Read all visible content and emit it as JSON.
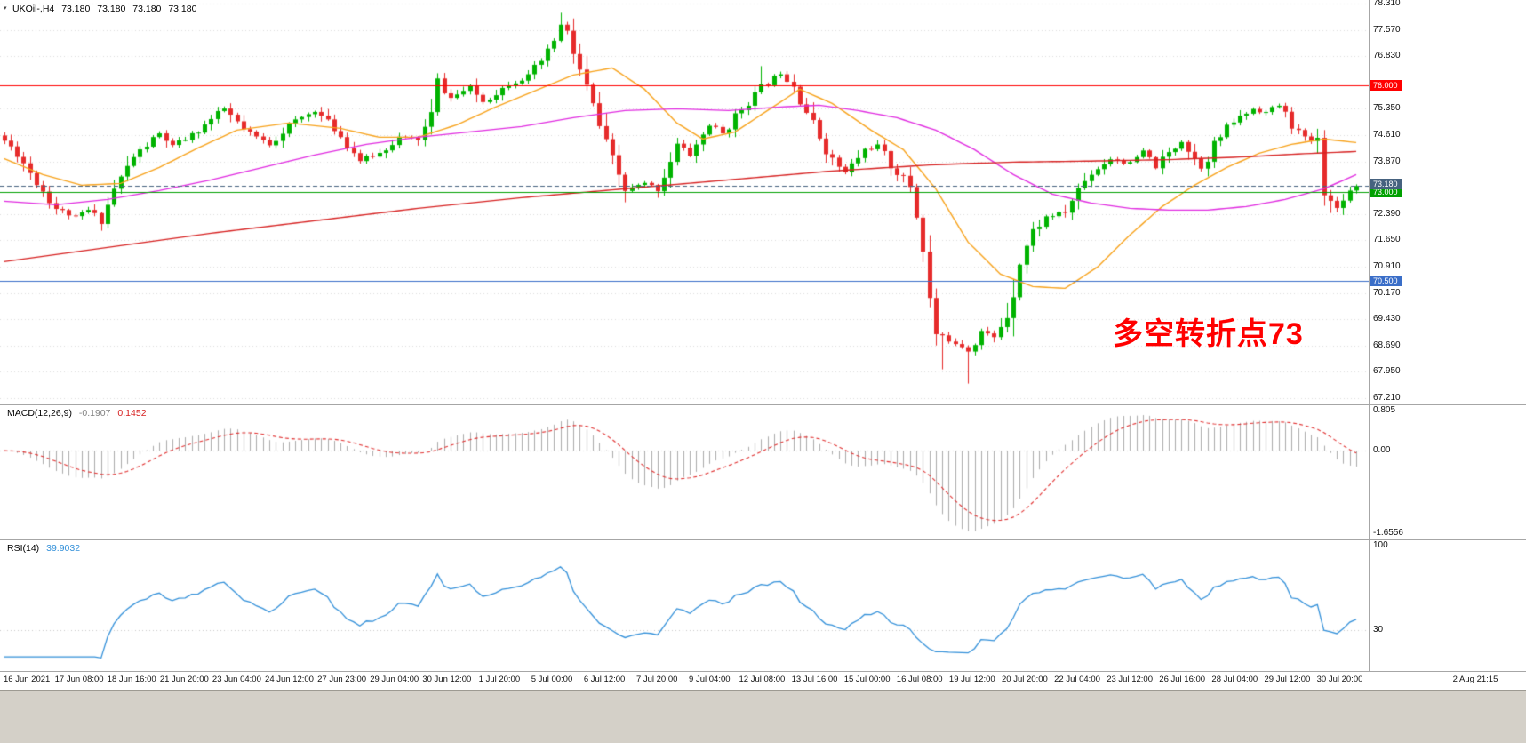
{
  "header": {
    "title_symbol": "UKOil-,H4",
    "ohlc": [
      "73.180",
      "73.180",
      "73.180",
      "73.180"
    ]
  },
  "annotation": {
    "text": "多空转折点73",
    "color": "#ff0000"
  },
  "colors": {
    "background": "#ffffff",
    "grid": "#dcdcdc",
    "bull": "#00b300",
    "bear": "#e62b2b",
    "ma_fast_orange": "#f7a21b",
    "ma_mid_magenta": "#e02be0",
    "ma_slow_red": "#d62020",
    "macd_histogram": "#ababab",
    "macd_signal": "#e03030",
    "rsi_line": "#3390d9",
    "hline_red": "#ff0000",
    "hline_green": "#00a000",
    "hline_blue": "#3a6ec8",
    "price_badge": "#46627f",
    "axis_text": "#111111",
    "window_chrome": "#d4d0c8"
  },
  "main_panel": {
    "price_ticks": [
      {
        "p": 78.31,
        "label": "78.310"
      },
      {
        "p": 77.57,
        "label": "77.570"
      },
      {
        "p": 76.83,
        "label": "76.830"
      },
      {
        "p": 75.35,
        "label": "75.350"
      },
      {
        "p": 74.61,
        "label": "74.610"
      },
      {
        "p": 73.87,
        "label": "73.870"
      },
      {
        "p": 72.39,
        "label": "72.390"
      },
      {
        "p": 71.65,
        "label": "71.650"
      },
      {
        "p": 70.91,
        "label": "70.910"
      },
      {
        "p": 70.17,
        "label": "70.170"
      },
      {
        "p": 69.43,
        "label": "69.430"
      },
      {
        "p": 68.69,
        "label": "68.690"
      },
      {
        "p": 67.95,
        "label": "67.950"
      },
      {
        "p": 67.21,
        "label": "67.210"
      }
    ],
    "hlines": [
      {
        "price": 76.0,
        "label": "76.000",
        "color": "#ff0000"
      },
      {
        "price": 73.0,
        "label": "73.000",
        "color": "#00a000"
      },
      {
        "price": 70.5,
        "label": "70.500",
        "color": "#3a6ec8"
      }
    ],
    "price_badge": {
      "price": 73.18,
      "label": "73.180",
      "color": "#46627f"
    }
  },
  "macd_panel": {
    "label": "MACD(12,26,9)",
    "value_main": "-0.1907",
    "value_signal": "0.1452",
    "ticks": [
      {
        "v": 0.805,
        "label": "0.805"
      },
      {
        "v": 0,
        "label": "0.00"
      },
      {
        "v": -1.6556,
        "label": "-1.6556"
      }
    ]
  },
  "rsi_panel": {
    "label": "RSI(14)",
    "value": "39.9032",
    "ticks": [
      {
        "v": 100,
        "label": "100"
      },
      {
        "v": 30,
        "label": "30"
      }
    ],
    "levels": [
      30
    ]
  },
  "chart_data": {
    "type": "candlestick",
    "symbol": "UKOil-",
    "timeframe": "H4",
    "title": "UKOil-,H4 73.180 73.180 73.180 73.180",
    "current_price": 73.18,
    "n_candles": 210,
    "seed": 11,
    "main_ylim": [
      67.035,
      78.41
    ],
    "close_anchors": [
      [
        0,
        74.45
      ],
      [
        2,
        74.1
      ],
      [
        5,
        73.3
      ],
      [
        8,
        72.55
      ],
      [
        11,
        72.3
      ],
      [
        13,
        72.5
      ],
      [
        15,
        72.2
      ],
      [
        17,
        73.1
      ],
      [
        20,
        74.0
      ],
      [
        24,
        74.65
      ],
      [
        26,
        74.3
      ],
      [
        29,
        74.6
      ],
      [
        32,
        75.05
      ],
      [
        34,
        75.35
      ],
      [
        37,
        74.75
      ],
      [
        41,
        74.35
      ],
      [
        44,
        74.9
      ],
      [
        48,
        75.3
      ],
      [
        51,
        74.8
      ],
      [
        55,
        73.9
      ],
      [
        58,
        74.1
      ],
      [
        61,
        74.55
      ],
      [
        64,
        74.5
      ],
      [
        66,
        75.1
      ],
      [
        67,
        76.1
      ],
      [
        69,
        75.65
      ],
      [
        72,
        75.95
      ],
      [
        74,
        75.55
      ],
      [
        78,
        76.05
      ],
      [
        81,
        76.25
      ],
      [
        84,
        76.9
      ],
      [
        86,
        77.7
      ],
      [
        87,
        77.45
      ],
      [
        89,
        76.4
      ],
      [
        91,
        75.4
      ],
      [
        93,
        74.3
      ],
      [
        96,
        73.05
      ],
      [
        99,
        73.25
      ],
      [
        101,
        73.1
      ],
      [
        104,
        74.35
      ],
      [
        106,
        74.05
      ],
      [
        109,
        74.9
      ],
      [
        111,
        74.65
      ],
      [
        114,
        75.35
      ],
      [
        117,
        75.95
      ],
      [
        120,
        76.35
      ],
      [
        122,
        76.05
      ],
      [
        125,
        74.9
      ],
      [
        128,
        73.9
      ],
      [
        130,
        73.55
      ],
      [
        133,
        74.2
      ],
      [
        135,
        74.3
      ],
      [
        137,
        73.75
      ],
      [
        140,
        73.2
      ],
      [
        142,
        71.6
      ],
      [
        143,
        69.9
      ],
      [
        144,
        69.0
      ],
      [
        146,
        68.85
      ],
      [
        148,
        68.7
      ],
      [
        149,
        68.55
      ],
      [
        151,
        69.1
      ],
      [
        153,
        68.9
      ],
      [
        155,
        69.6
      ],
      [
        157,
        71.1
      ],
      [
        159,
        71.9
      ],
      [
        161,
        72.3
      ],
      [
        164,
        72.45
      ],
      [
        166,
        73.1
      ],
      [
        168,
        73.55
      ],
      [
        171,
        73.95
      ],
      [
        174,
        73.8
      ],
      [
        176,
        74.15
      ],
      [
        178,
        73.7
      ],
      [
        180,
        74.1
      ],
      [
        182,
        74.45
      ],
      [
        184,
        73.95
      ],
      [
        185,
        73.7
      ],
      [
        187,
        74.35
      ],
      [
        190,
        75.0
      ],
      [
        193,
        75.35
      ],
      [
        195,
        75.25
      ],
      [
        197,
        75.45
      ],
      [
        199,
        74.9
      ],
      [
        201,
        74.5
      ],
      [
        203,
        74.4
      ],
      [
        204,
        73.3
      ],
      [
        205,
        72.7
      ],
      [
        206,
        72.55
      ],
      [
        207,
        72.9
      ],
      [
        209,
        73.18
      ]
    ],
    "high_overrides": {
      "67": 76.35,
      "86": 78.05,
      "117": 76.55
    },
    "low_overrides": {
      "15": 71.92,
      "96": 72.72,
      "145": 68.02,
      "149": 67.62,
      "205": 72.42
    },
    "moving_averages": [
      {
        "name": "ma-fast",
        "color_key": "ma_fast_orange",
        "anchors": [
          [
            0,
            73.95
          ],
          [
            6,
            73.5
          ],
          [
            12,
            73.2
          ],
          [
            18,
            73.25
          ],
          [
            24,
            73.7
          ],
          [
            30,
            74.25
          ],
          [
            36,
            74.75
          ],
          [
            44,
            74.95
          ],
          [
            52,
            74.8
          ],
          [
            58,
            74.55
          ],
          [
            64,
            74.55
          ],
          [
            70,
            74.9
          ],
          [
            76,
            75.4
          ],
          [
            82,
            75.85
          ],
          [
            88,
            76.3
          ],
          [
            94,
            76.5
          ],
          [
            99,
            75.9
          ],
          [
            104,
            74.95
          ],
          [
            108,
            74.5
          ],
          [
            113,
            74.7
          ],
          [
            118,
            75.3
          ],
          [
            123,
            75.9
          ],
          [
            128,
            75.5
          ],
          [
            134,
            74.75
          ],
          [
            139,
            74.2
          ],
          [
            144,
            73.1
          ],
          [
            149,
            71.6
          ],
          [
            154,
            70.7
          ],
          [
            159,
            70.35
          ],
          [
            164,
            70.3
          ],
          [
            169,
            70.9
          ],
          [
            174,
            71.8
          ],
          [
            179,
            72.6
          ],
          [
            184,
            73.2
          ],
          [
            189,
            73.7
          ],
          [
            194,
            74.1
          ],
          [
            199,
            74.35
          ],
          [
            204,
            74.5
          ],
          [
            209,
            74.4
          ]
        ]
      },
      {
        "name": "ma-mid",
        "color_key": "ma_mid_magenta",
        "anchors": [
          [
            0,
            72.75
          ],
          [
            8,
            72.65
          ],
          [
            16,
            72.8
          ],
          [
            24,
            73.05
          ],
          [
            32,
            73.35
          ],
          [
            40,
            73.7
          ],
          [
            48,
            74.05
          ],
          [
            56,
            74.35
          ],
          [
            64,
            74.55
          ],
          [
            72,
            74.7
          ],
          [
            80,
            74.85
          ],
          [
            88,
            75.1
          ],
          [
            96,
            75.3
          ],
          [
            104,
            75.35
          ],
          [
            112,
            75.3
          ],
          [
            120,
            75.4
          ],
          [
            126,
            75.45
          ],
          [
            132,
            75.3
          ],
          [
            138,
            75.1
          ],
          [
            144,
            74.75
          ],
          [
            150,
            74.2
          ],
          [
            156,
            73.5
          ],
          [
            162,
            72.95
          ],
          [
            168,
            72.7
          ],
          [
            174,
            72.55
          ],
          [
            180,
            72.5
          ],
          [
            186,
            72.5
          ],
          [
            192,
            72.6
          ],
          [
            198,
            72.8
          ],
          [
            204,
            73.1
          ],
          [
            209,
            73.5
          ]
        ]
      },
      {
        "name": "ma-slow",
        "color_key": "ma_slow_red",
        "anchors": [
          [
            0,
            71.05
          ],
          [
            16,
            71.45
          ],
          [
            32,
            71.85
          ],
          [
            48,
            72.2
          ],
          [
            64,
            72.55
          ],
          [
            80,
            72.85
          ],
          [
            96,
            73.1
          ],
          [
            112,
            73.35
          ],
          [
            128,
            73.6
          ],
          [
            144,
            73.78
          ],
          [
            156,
            73.85
          ],
          [
            168,
            73.88
          ],
          [
            180,
            73.92
          ],
          [
            192,
            74.0
          ],
          [
            200,
            74.08
          ],
          [
            209,
            74.15
          ]
        ]
      }
    ],
    "macd": {
      "fast": 12,
      "slow": 26,
      "signal": 9,
      "ylim": [
        -1.7806,
        0.912
      ],
      "current_main": -0.1907,
      "current_signal": 0.1452
    },
    "rsi": {
      "period": 14,
      "ylim": [
        -4.4,
        104.4
      ],
      "current": 39.9032,
      "levels": [
        30
      ]
    },
    "x_labels": [
      "16 Jun 2021",
      "17 Jun 08:00",
      "18 Jun 16:00",
      "21 Jun 20:00",
      "23 Jun 04:00",
      "24 Jun 12:00",
      "27 Jun 23:00",
      "29 Jun 04:00",
      "30 Jun 12:00",
      "1 Jul 20:00",
      "5 Jul 00:00",
      "6 Jul 12:00",
      "7 Jul 20:00",
      "9 Jul 04:00",
      "12 Jul 08:00",
      "13 Jul 16:00",
      "15 Jul 00:00",
      "16 Jul 08:00",
      "19 Jul 12:00",
      "20 Jul 20:00",
      "22 Jul 04:00",
      "23 Jul 12:00",
      "26 Jul 16:00",
      "28 Jul 04:00",
      "29 Jul 12:00",
      "30 Jul 20:00",
      "2 Aug 21:15"
    ]
  }
}
